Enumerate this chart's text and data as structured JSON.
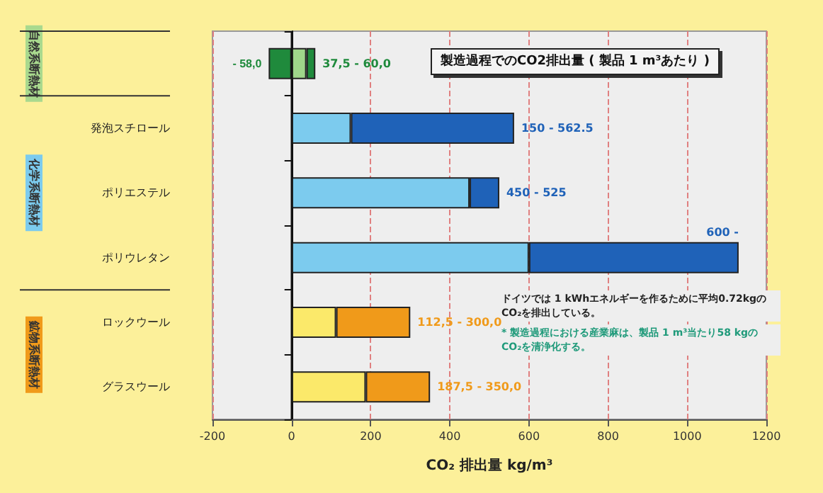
{
  "chart_data": {
    "type": "bar",
    "orientation": "horizontal",
    "stacked": true,
    "title": "製造過程でのCO2排出量 ( 製品 1 m³あたり )",
    "xlabel": "CO₂ 排出量 kg/m³",
    "categories": [
      null,
      "発泡スチロール",
      "ポリエステル",
      "ポリウレタン",
      "ロックウール",
      "グラスウール"
    ],
    "series": [
      {
        "colors": [
          "#1f8a3c",
          null,
          null,
          null,
          null,
          null
        ],
        "values": [
          -58,
          null,
          null,
          null,
          null,
          null
        ],
        "value_labels": [
          "- 58,0",
          null,
          null,
          null,
          null,
          null
        ]
      },
      {
        "colors": [
          "#9fd68a",
          "#7ccbee",
          "#7ccbee",
          "#7ccbee",
          "#fbe96a",
          "#fbe96a"
        ],
        "values": [
          37.5,
          150,
          450,
          600,
          112.5,
          187.5
        ]
      },
      {
        "colors": [
          "#1f8a3c",
          "#1f62b8",
          "#1f62b8",
          "#1f62b8",
          "#f09a1a",
          "#f09a1a"
        ],
        "values": [
          22.5,
          412.5,
          75,
          530,
          187.5,
          162.5
        ]
      }
    ],
    "xlim": [
      -200,
      1200
    ],
    "xticks": [
      -200,
      0,
      200,
      400,
      600,
      800,
      1000,
      1200
    ],
    "grid": "x",
    "ref_lines": [
      {
        "axis": "x",
        "value": 0,
        "color": "#111111",
        "line_style": "solid"
      }
    ],
    "annotations": [
      "自然系断熱材",
      "化学系断熱材",
      "鉱物系断熱材",
      "ドイツでは 1 kWhエネルギーを作るために平均0.72kgのCO₂を排出している。",
      "* 製造過程における産業麻は、製品 1 m³当たり58 kgのCO₂を清浄化する。",
      {
        "text": "37,5 - 60,0",
        "x": 60
      },
      {
        "text": "150 - 562.5",
        "x": 562.5,
        "y": "発泡スチロール"
      },
      {
        "text": "450 - 525",
        "x": 525,
        "y": "ポリエステル"
      },
      {
        "text": "600 -",
        "x": 1130,
        "y": "ポリウレタン"
      },
      {
        "text": "112,5 - 300,0",
        "x": 300,
        "y": "ロックウール"
      },
      {
        "text": "187,5 - 350,0",
        "x": 350,
        "y": "グラスウール"
      }
    ]
  }
}
